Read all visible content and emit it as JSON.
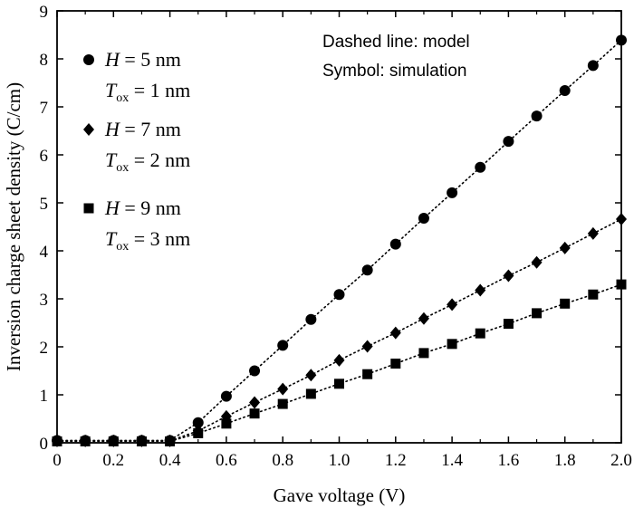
{
  "chart_data": {
    "type": "scatter",
    "title": "",
    "xlabel": "Gave voltage (V)",
    "ylabel": "Inversion charge sheet density (C/cm)",
    "xlim": [
      0,
      2.0
    ],
    "ylim": [
      0,
      9
    ],
    "x_ticks": [
      "0",
      "0.2",
      "0.4",
      "0.6",
      "0.8",
      "1.0",
      "1.2",
      "1.4",
      "1.6",
      "1.8",
      "2.0"
    ],
    "y_ticks": [
      "0",
      "1",
      "2",
      "3",
      "4",
      "5",
      "6",
      "7",
      "8",
      "9"
    ],
    "grid": false,
    "legend_position": "top-left",
    "notes": [
      "Dashed line: model",
      "Symbol: simulation"
    ],
    "x": [
      0,
      0.1,
      0.2,
      0.3,
      0.4,
      0.5,
      0.6,
      0.7,
      0.8,
      0.9,
      1.0,
      1.1,
      1.2,
      1.3,
      1.4,
      1.5,
      1.6,
      1.7,
      1.8,
      1.9,
      2.0
    ],
    "series": [
      {
        "marker": "circle",
        "legend": {
          "var1": "H",
          "text1": " = 5 nm",
          "var2": "T",
          "sub2": "ox",
          "text2": " = 1 nm"
        },
        "values": [
          0.05,
          0.05,
          0.05,
          0.05,
          0.05,
          0.42,
          0.97,
          1.5,
          2.03,
          2.57,
          3.09,
          3.6,
          4.14,
          4.68,
          5.21,
          5.74,
          6.28,
          6.81,
          7.34,
          7.86,
          8.39
        ]
      },
      {
        "marker": "diamond",
        "legend": {
          "var1": "H",
          "text1": " = 7 nm",
          "var2": "T",
          "sub2": "ox",
          "text2": " = 2 nm"
        },
        "values": [
          0.04,
          0.04,
          0.04,
          0.04,
          0.04,
          0.25,
          0.55,
          0.84,
          1.12,
          1.41,
          1.72,
          2.01,
          2.29,
          2.59,
          2.88,
          3.18,
          3.48,
          3.76,
          4.06,
          4.36,
          4.66
        ]
      },
      {
        "marker": "square",
        "legend": {
          "var1": "H",
          "text1": " = 9 nm",
          "var2": "T",
          "sub2": "ox",
          "text2": " = 3 nm"
        },
        "values": [
          0.03,
          0.03,
          0.03,
          0.03,
          0.03,
          0.2,
          0.4,
          0.61,
          0.81,
          1.02,
          1.23,
          1.43,
          1.65,
          1.87,
          2.06,
          2.28,
          2.48,
          2.7,
          2.9,
          3.09,
          3.3
        ]
      }
    ]
  }
}
